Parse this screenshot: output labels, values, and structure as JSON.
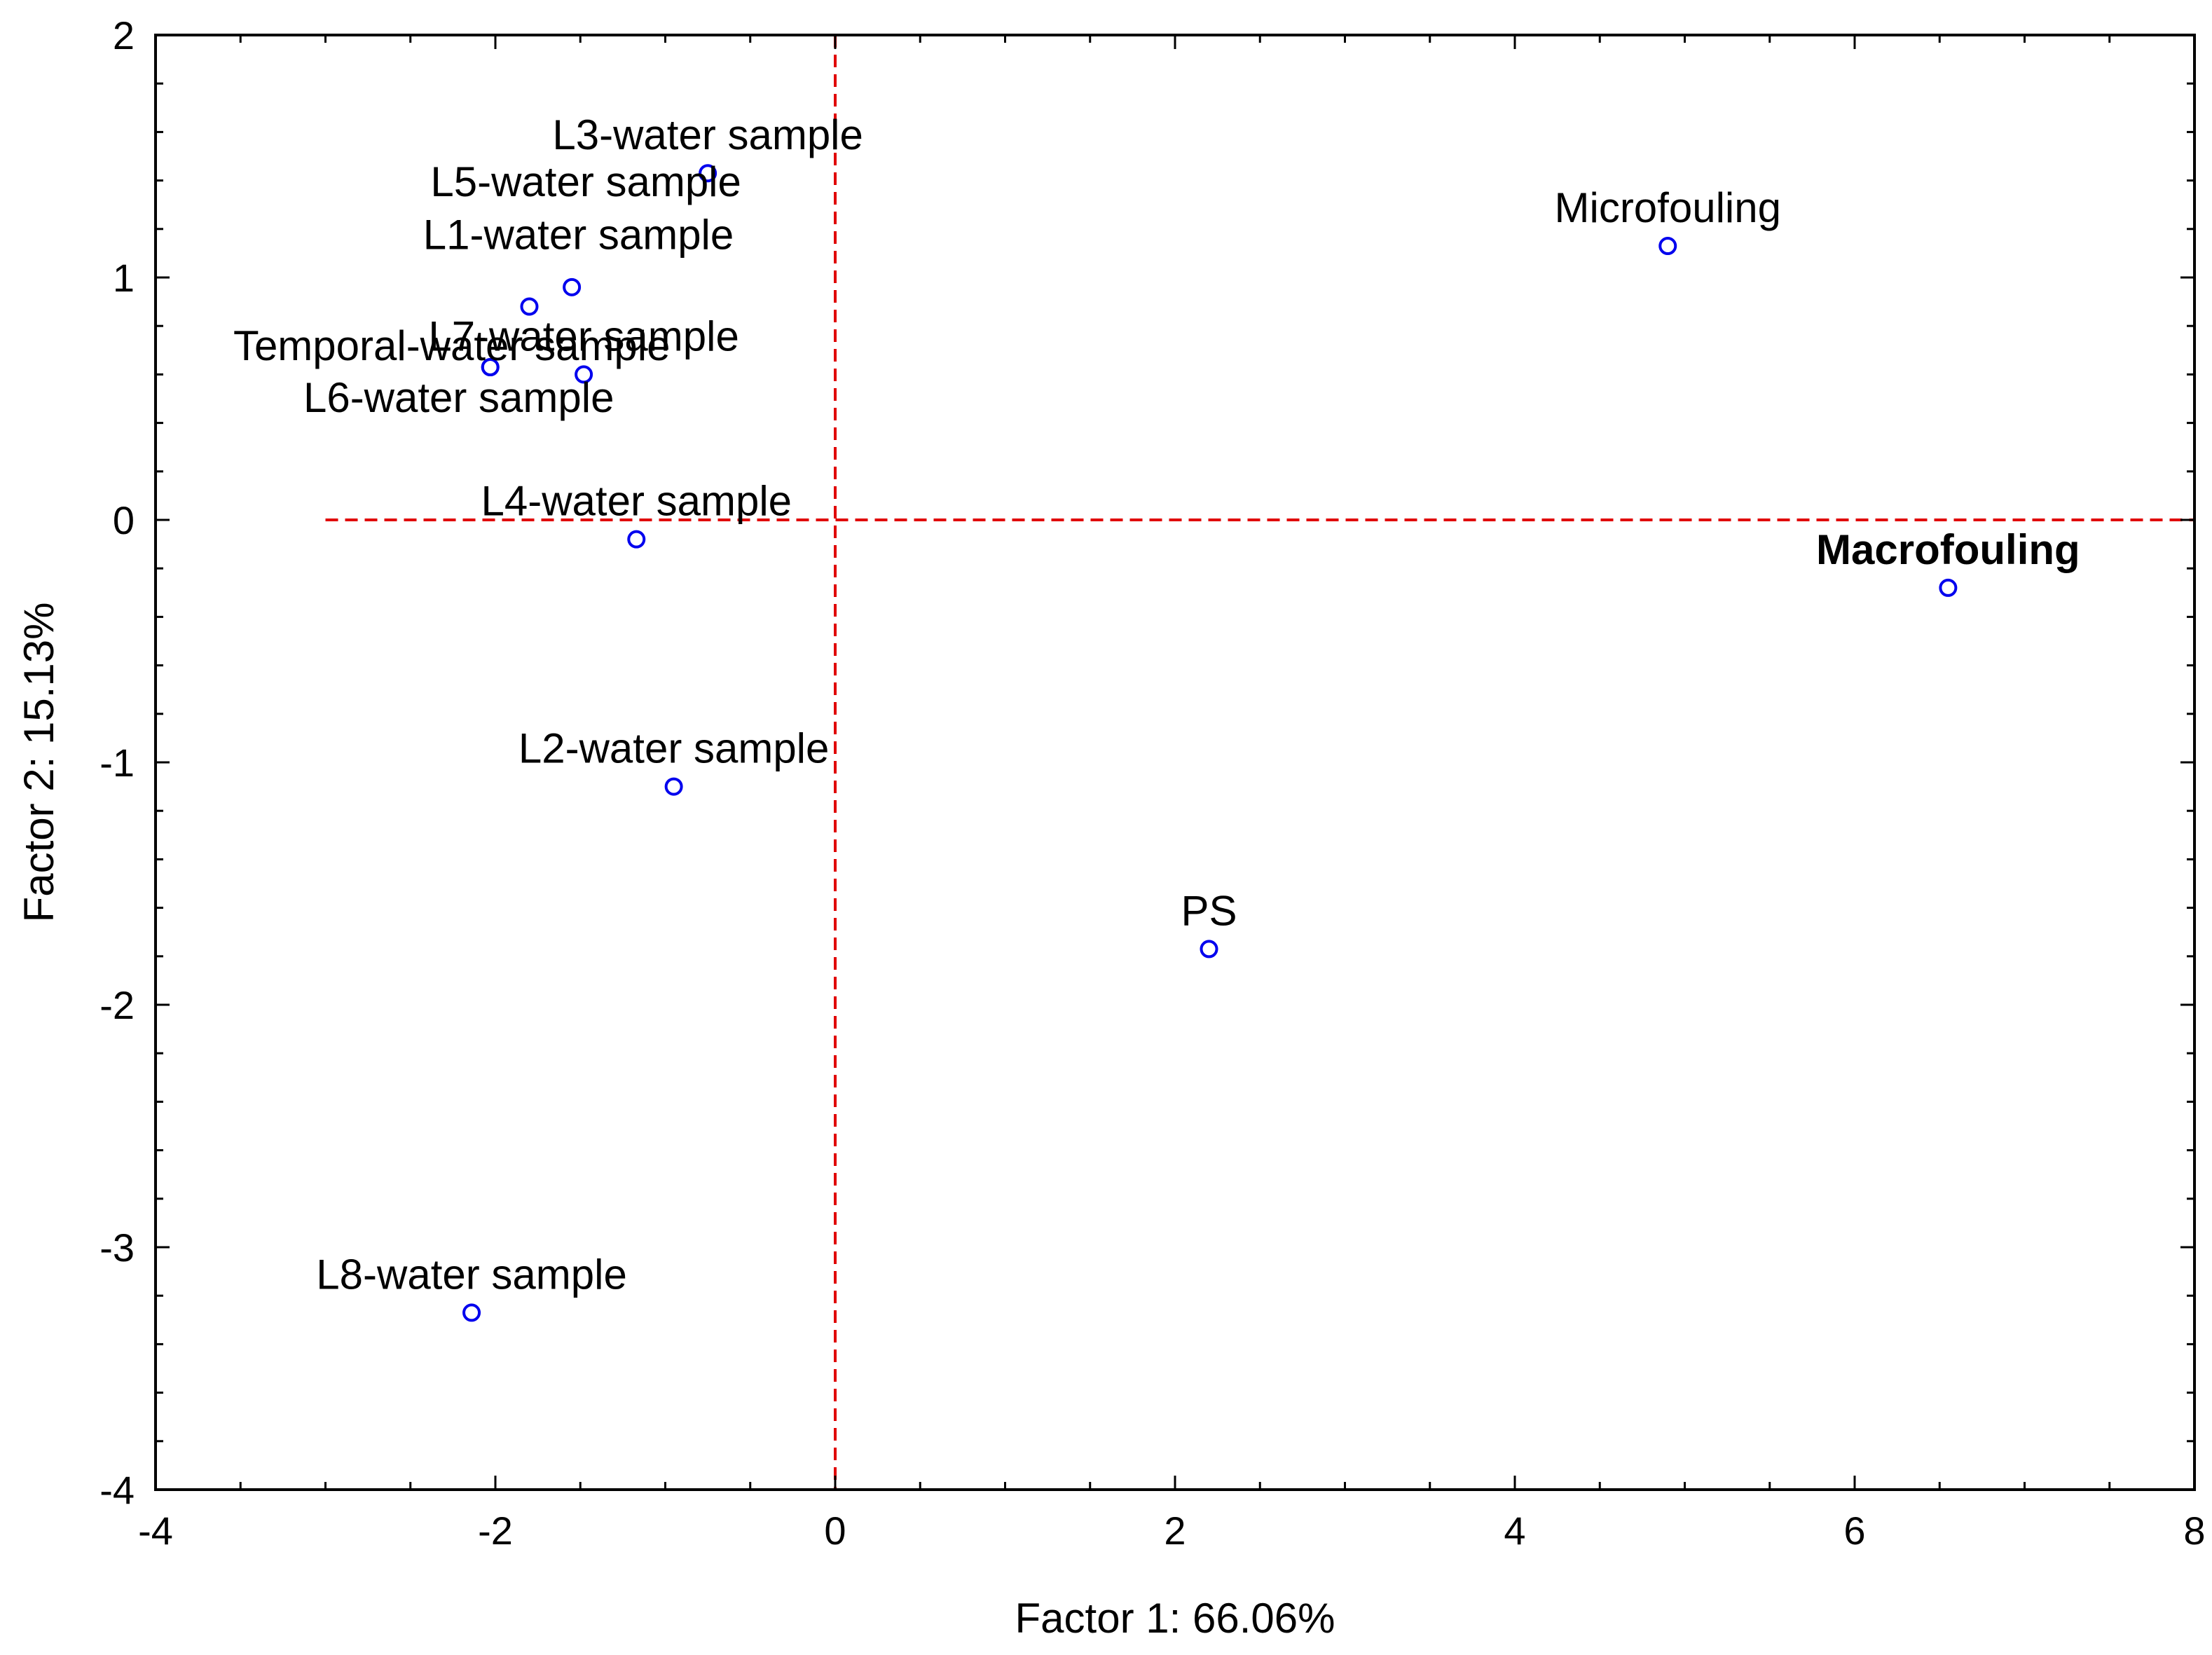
{
  "chart_data": {
    "type": "scatter",
    "title": "",
    "xlabel": "Factor 1: 66.06%",
    "ylabel": "Factor 2: 15.13%",
    "xlim": [
      -4,
      8
    ],
    "ylim": [
      -4,
      2
    ],
    "xticks": [
      -4,
      -2,
      0,
      2,
      4,
      6,
      8
    ],
    "yticks": [
      -4,
      -3,
      -2,
      -1,
      0,
      1,
      2
    ],
    "x_tick_labels": [
      "-4",
      "-2",
      "0",
      "2",
      "4",
      "6",
      "8"
    ],
    "y_tick_labels": [
      "-4",
      "-3",
      "-2",
      "-1",
      "0",
      "1",
      "2"
    ],
    "grid": false,
    "reference_lines": {
      "vertical_x": 0,
      "horizontal_y": 0,
      "horizontal_from_x": -3,
      "color": "#e00000",
      "style": "dashed"
    },
    "marker_color": "#0000ee",
    "points": [
      {
        "label": "L3-water sample",
        "x": -0.75,
        "y": 1.43,
        "bold": false
      },
      {
        "label": "L5-water sample",
        "x": -1.55,
        "y": 0.96,
        "bold": false
      },
      {
        "label": "L1-water sample",
        "x": -1.8,
        "y": 0.88,
        "bold": false
      },
      {
        "label": "Temporal-water sample",
        "x": -2.03,
        "y": 0.63,
        "bold": false
      },
      {
        "label": "L7-water sample",
        "x": -1.48,
        "y": 0.6,
        "bold": false
      },
      {
        "label": "L6-water sample",
        "x": -2.03,
        "y": 0.63,
        "bold": false
      },
      {
        "label": "L4-water sample",
        "x": -1.17,
        "y": -0.08,
        "bold": false
      },
      {
        "label": "L2-water sample",
        "x": -0.95,
        "y": -1.1,
        "bold": false
      },
      {
        "label": "L8-water sample",
        "x": -2.14,
        "y": -3.27,
        "bold": false
      },
      {
        "label": "PS",
        "x": 2.2,
        "y": -1.77,
        "bold": false
      },
      {
        "label": "Microfouling",
        "x": 4.9,
        "y": 1.13,
        "bold": false
      },
      {
        "label": "Macrofouling",
        "x": 6.55,
        "y": -0.28,
        "bold": true
      }
    ]
  }
}
